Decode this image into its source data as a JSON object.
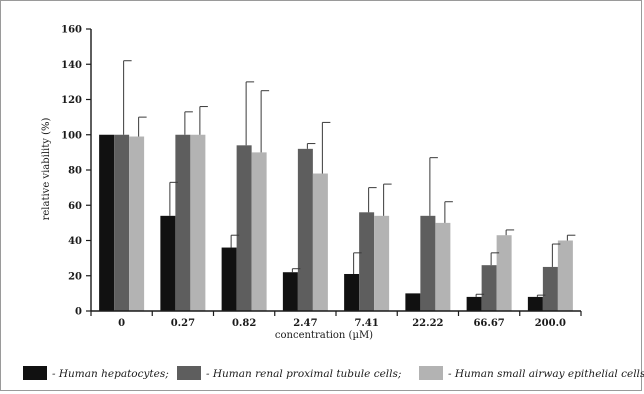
{
  "chart_data": {
    "type": "bar",
    "title": "",
    "xlabel": "concentration (µM)",
    "ylabel": "relative viability (%)",
    "ylim": [
      0,
      160
    ],
    "yticks": [
      0,
      20,
      40,
      60,
      80,
      100,
      120,
      140,
      160
    ],
    "categories": [
      "0",
      "0.27",
      "0.82",
      "2.47",
      "7.41",
      "22.22",
      "66.67",
      "200.0"
    ],
    "grid": false,
    "legend_position": "bottom",
    "series": [
      {
        "name": "- Human hepatocytes;",
        "color": "#111111",
        "values": [
          100,
          54,
          36,
          22,
          21,
          10,
          8,
          8
        ],
        "errors": [
          0,
          19,
          7,
          2,
          12,
          0,
          1.5,
          1
        ]
      },
      {
        "name": "- Human renal proximal tubule cells;",
        "color": "#5e5e5e",
        "values": [
          100,
          100,
          94,
          92,
          56,
          54,
          26,
          25
        ],
        "errors": [
          42,
          13,
          36,
          3,
          14,
          33,
          7,
          13
        ]
      },
      {
        "name": "- Human small airway epithelial cells.",
        "color": "#b3b3b3",
        "values": [
          99,
          100,
          90,
          78,
          54,
          50,
          43,
          40
        ],
        "errors": [
          11,
          16,
          35,
          29,
          18,
          12,
          3,
          3
        ]
      }
    ]
  }
}
